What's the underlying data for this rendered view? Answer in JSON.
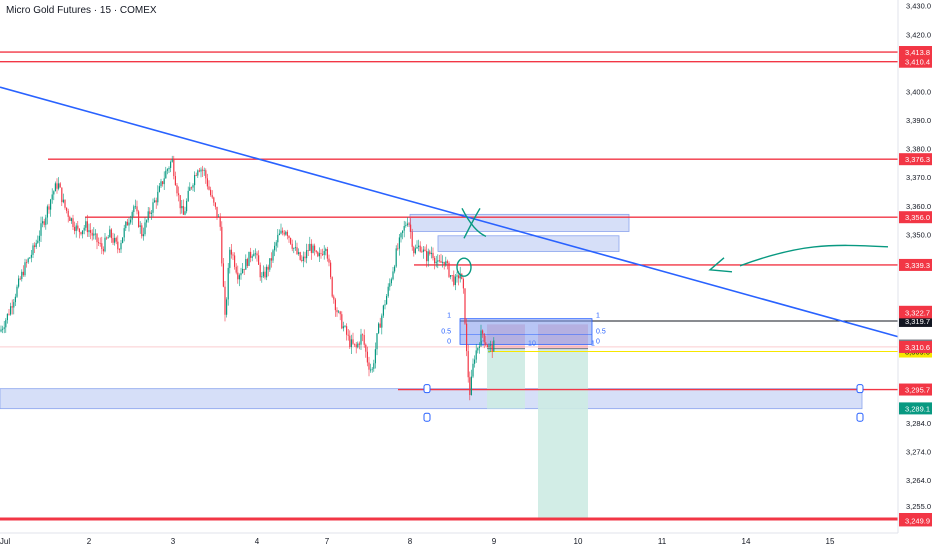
{
  "title": "Micro Gold Futures · 15 · COMEX",
  "colors": {
    "up": "#089981",
    "down": "#f23645",
    "trendline": "#2962ff",
    "resistance": "#f23645",
    "current": "#131722",
    "yellow": "#f7e600",
    "zone": "#c8d4f5",
    "zoneStroke": "#8aa4ee",
    "stop": "#f8c9cd",
    "target": "#cdebe3",
    "pen": "#089981"
  },
  "chart_data": {
    "type": "candlestick",
    "ylim": [
      3245.5,
      3432.0
    ],
    "xlim": [
      0,
      932
    ],
    "x_ticks": [
      {
        "label": "Jul",
        "pos": 5
      },
      {
        "label": "2",
        "pos": 89
      },
      {
        "label": "3",
        "pos": 173
      },
      {
        "label": "4",
        "pos": 257
      },
      {
        "label": "7",
        "pos": 327
      },
      {
        "label": "8",
        "pos": 410
      },
      {
        "label": "9",
        "pos": 494
      },
      {
        "label": "10",
        "pos": 578
      },
      {
        "label": "11",
        "pos": 662
      },
      {
        "label": "14",
        "pos": 746
      },
      {
        "label": "15",
        "pos": 830
      }
    ],
    "y_ticks": [
      3430.0,
      3420.0,
      3400.0,
      3390.0,
      3380.0,
      3370.0,
      3360.0,
      3350.0,
      3284.0,
      3274.0,
      3264.0,
      3255.0
    ],
    "horizontal_levels": [
      {
        "value": 3413.8,
        "label": "3,413.8",
        "style": "resistance",
        "from": 0
      },
      {
        "value": 3410.4,
        "label": "3,410.4",
        "style": "resistance",
        "from": 0
      },
      {
        "value": 3376.3,
        "label": "3,376.3",
        "style": "resistance",
        "from": 48
      },
      {
        "value": 3356.0,
        "label": "3,356.0",
        "style": "resistance",
        "from": 85
      },
      {
        "value": 3339.3,
        "label": "3,339.3",
        "style": "resistance",
        "from": 414
      },
      {
        "value": 3319.7,
        "label": "3,319.7",
        "style": "current",
        "from": 460
      },
      {
        "value": 3309.0,
        "label": "3,309.0",
        "style": "yellow",
        "from": 488
      },
      {
        "value": 3295.7,
        "label": "3,295.7",
        "style": "resistance",
        "from": 398
      },
      {
        "value": 3250.4,
        "label": "3,250.4",
        "style": "resistance",
        "from": 0
      }
    ],
    "price_labels": [
      {
        "label": "3,322.9",
        "value": 3322.9,
        "kind": "red"
      },
      {
        "label": "3,322.7",
        "value": 3322.7,
        "kind": "red"
      },
      {
        "label": "3,311.1",
        "value": 3311.1,
        "kind": "gray"
      },
      {
        "label": "3,310.7",
        "value": 3310.7,
        "kind": "gray"
      },
      {
        "label": "3,310.6",
        "value": 3310.6,
        "kind": "red"
      },
      {
        "label": "3,289.1",
        "value": 3289.1,
        "kind": "green"
      },
      {
        "label": "3,249.9",
        "value": 3249.9,
        "kind": "red"
      }
    ],
    "trendline": {
      "points": [
        [
          0,
          3401.5
        ],
        [
          900,
          3314.0
        ]
      ]
    },
    "zones": [
      {
        "x1": 410,
        "x2": 629,
        "top": 3357.0,
        "bottom": 3351.0
      },
      {
        "x1": 438,
        "x2": 619,
        "top": 3349.5,
        "bottom": 3344.0
      },
      {
        "x1": 0,
        "x2": 862,
        "top": 3296.0,
        "bottom": 3289.0
      }
    ],
    "fib_boxes": [
      {
        "x1": 460,
        "x2": 592,
        "top": 3320.5,
        "mid": 3315.0,
        "bottom": 3311.5,
        "labels_left": [
          "1",
          "0.5",
          "0"
        ],
        "labels_right": [
          "1",
          "0.5",
          "0"
        ]
      }
    ],
    "positions": [
      {
        "x1": 487,
        "x2": 525,
        "entry": 3310.0,
        "stop": 3318.5,
        "target": 3289.0,
        "labels": [
          "0",
          "1"
        ]
      },
      {
        "x1": 538,
        "x2": 588,
        "entry": 3310.0,
        "stop": 3318.5,
        "target": 3250.4,
        "labels": [
          "0",
          "1"
        ]
      }
    ],
    "price_path": [
      [
        0,
        3316
      ],
      [
        8,
        3322
      ],
      [
        16,
        3330
      ],
      [
        24,
        3338
      ],
      [
        34,
        3345
      ],
      [
        44,
        3355
      ],
      [
        52,
        3364
      ],
      [
        58,
        3368
      ],
      [
        64,
        3360
      ],
      [
        70,
        3356
      ],
      [
        78,
        3351
      ],
      [
        86,
        3353
      ],
      [
        94,
        3349
      ],
      [
        102,
        3345
      ],
      [
        110,
        3350
      ],
      [
        118,
        3345
      ],
      [
        126,
        3353
      ],
      [
        134,
        3360
      ],
      [
        142,
        3350
      ],
      [
        150,
        3358
      ],
      [
        158,
        3364
      ],
      [
        166,
        3372
      ],
      [
        172,
        3376
      ],
      [
        178,
        3364
      ],
      [
        183,
        3356
      ],
      [
        190,
        3366
      ],
      [
        198,
        3374
      ],
      [
        204,
        3372
      ],
      [
        212,
        3362
      ],
      [
        220,
        3354
      ],
      [
        225,
        3320
      ],
      [
        230,
        3346
      ],
      [
        238,
        3336
      ],
      [
        246,
        3340
      ],
      [
        254,
        3345
      ],
      [
        262,
        3334
      ],
      [
        270,
        3340
      ],
      [
        278,
        3349
      ],
      [
        286,
        3352
      ],
      [
        294,
        3345
      ],
      [
        302,
        3340
      ],
      [
        310,
        3346
      ],
      [
        318,
        3341
      ],
      [
        326,
        3347
      ],
      [
        332,
        3330
      ],
      [
        338,
        3322
      ],
      [
        344,
        3317
      ],
      [
        350,
        3312
      ],
      [
        356,
        3310
      ],
      [
        362,
        3315
      ],
      [
        368,
        3305
      ],
      [
        372,
        3302
      ],
      [
        378,
        3316
      ],
      [
        384,
        3325
      ],
      [
        390,
        3333
      ],
      [
        396,
        3343
      ],
      [
        402,
        3350
      ],
      [
        408,
        3356
      ],
      [
        414,
        3344
      ],
      [
        420,
        3346
      ],
      [
        426,
        3342
      ],
      [
        432,
        3344
      ],
      [
        438,
        3339
      ],
      [
        444,
        3341
      ],
      [
        450,
        3336
      ],
      [
        456,
        3333
      ],
      [
        460,
        3337
      ],
      [
        464,
        3328
      ],
      [
        467,
        3305
      ],
      [
        470,
        3294
      ],
      [
        474,
        3307
      ],
      [
        478,
        3311
      ],
      [
        482,
        3316
      ],
      [
        486,
        3312
      ],
      [
        490,
        3310
      ],
      [
        494,
        3311
      ]
    ],
    "annotations": [
      {
        "type": "x-mark",
        "x": 472,
        "value": 3353.5
      },
      {
        "type": "circle",
        "x": 464,
        "value": 3338.5
      },
      {
        "type": "arrow-left",
        "x1": 888,
        "x2": 710,
        "value": 3339.0
      }
    ]
  }
}
